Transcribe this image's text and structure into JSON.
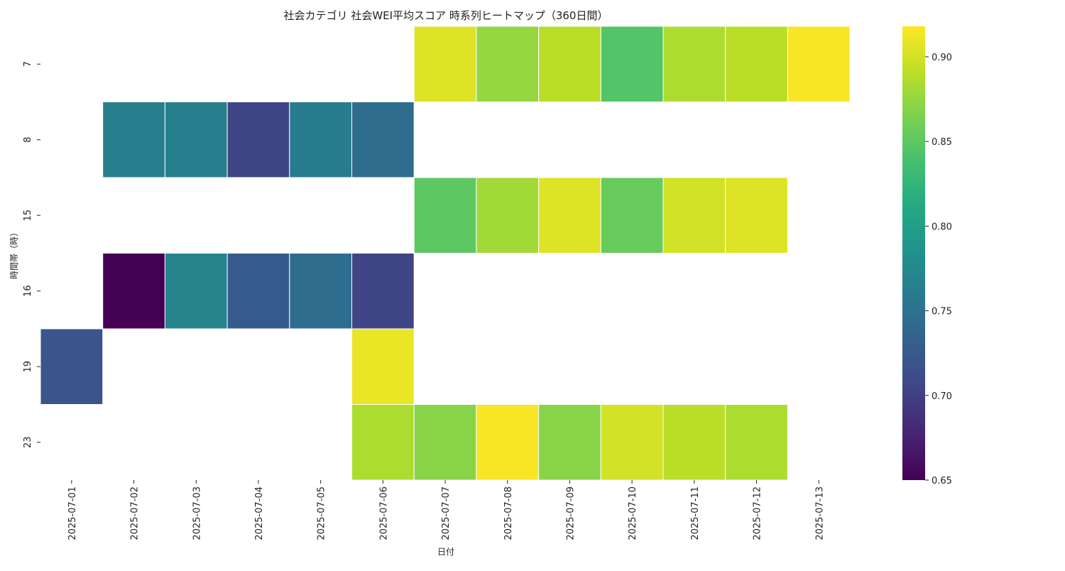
{
  "chart_data": {
    "type": "heatmap",
    "title": "社会カテゴリ 社会WEI平均スコア 時系列ヒートマップ（360日間）",
    "xlabel": "日付",
    "ylabel": "時間帯（時）",
    "x_categories": [
      "2025-07-01",
      "2025-07-02",
      "2025-07-03",
      "2025-07-04",
      "2025-07-05",
      "2025-07-06",
      "2025-07-07",
      "2025-07-08",
      "2025-07-09",
      "2025-07-10",
      "2025-07-11",
      "2025-07-12",
      "2025-07-13"
    ],
    "y_categories": [
      "7",
      "8",
      "15",
      "16",
      "19",
      "23"
    ],
    "values": [
      [
        null,
        null,
        null,
        null,
        null,
        null,
        0.905,
        0.875,
        0.89,
        0.845,
        0.885,
        0.89,
        0.915
      ],
      [
        null,
        0.765,
        0.765,
        0.705,
        0.76,
        0.745,
        null,
        null,
        null,
        null,
        null,
        null,
        null
      ],
      [
        null,
        null,
        null,
        null,
        null,
        null,
        0.85,
        0.88,
        0.905,
        0.855,
        0.9,
        0.905,
        null
      ],
      [
        null,
        0.65,
        0.77,
        0.725,
        0.745,
        0.705,
        null,
        null,
        null,
        null,
        null,
        null,
        null
      ],
      [
        0.72,
        null,
        null,
        null,
        null,
        0.91,
        null,
        null,
        null,
        null,
        null,
        null,
        null
      ],
      [
        null,
        null,
        null,
        null,
        null,
        0.885,
        0.87,
        0.915,
        0.87,
        0.9,
        0.89,
        0.885,
        null
      ]
    ],
    "colorscale": "viridis",
    "vmin": 0.65,
    "vmax": 0.918,
    "colorbar_ticks": [
      "0.65",
      "0.70",
      "0.75",
      "0.80",
      "0.85",
      "0.90"
    ],
    "grid": false,
    "legend": "colorbar-right"
  }
}
